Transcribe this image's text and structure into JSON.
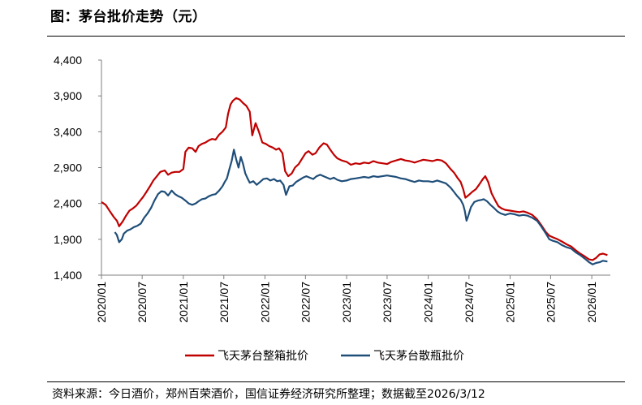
{
  "page": {
    "title": "图：茅台批价走势（元）",
    "source": "资料来源：今日酒价，郑州百荣酒价，国信证券经济研究所整理；数据截至2026/3/12"
  },
  "colors": {
    "box": "#c00000",
    "loose": "#1f4e79",
    "axis": "#7f7f7f"
  },
  "chart_data": {
    "type": "line",
    "title": "图：茅台批价走势（元）",
    "xlabel": "",
    "ylabel": "",
    "ylim": [
      1400,
      4400
    ],
    "y_ticks": [
      1400,
      1900,
      2400,
      2900,
      3400,
      3900,
      4400
    ],
    "y_tick_labels": [
      "1,400",
      "1,900",
      "2,400",
      "2,900",
      "3,400",
      "3,900",
      "4,400"
    ],
    "x_range": [
      "2020/01",
      "2026/03"
    ],
    "x_ticks": [
      "2020/01",
      "2020/07",
      "2021/01",
      "2021/07",
      "2022/01",
      "2022/07",
      "2023/01",
      "2023/07",
      "2024/01",
      "2024/07",
      "2025/01",
      "2025/07",
      "2026/01"
    ],
    "grid": false,
    "legend_position": "bottom",
    "series": [
      {
        "name": "飞天茅台整箱批价",
        "color": "#c00000",
        "points": [
          [
            "2020-01-01",
            2420
          ],
          [
            "2020-01-20",
            2380
          ],
          [
            "2020-02-10",
            2280
          ],
          [
            "2020-02-25",
            2210
          ],
          [
            "2020-03-10",
            2160
          ],
          [
            "2020-03-20",
            2080
          ],
          [
            "2020-04-05",
            2150
          ],
          [
            "2020-04-20",
            2230
          ],
          [
            "2020-05-05",
            2300
          ],
          [
            "2020-05-20",
            2330
          ],
          [
            "2020-06-05",
            2370
          ],
          [
            "2020-06-20",
            2430
          ],
          [
            "2020-07-05",
            2490
          ],
          [
            "2020-07-20",
            2560
          ],
          [
            "2020-08-05",
            2640
          ],
          [
            "2020-08-20",
            2720
          ],
          [
            "2020-09-05",
            2780
          ],
          [
            "2020-09-20",
            2840
          ],
          [
            "2020-10-10",
            2860
          ],
          [
            "2020-10-25",
            2800
          ],
          [
            "2020-11-10",
            2830
          ],
          [
            "2020-11-25",
            2840
          ],
          [
            "2020-12-15",
            2840
          ],
          [
            "2021-01-01",
            2880
          ],
          [
            "2021-01-10",
            3120
          ],
          [
            "2021-01-25",
            3180
          ],
          [
            "2021-02-10",
            3170
          ],
          [
            "2021-02-25",
            3120
          ],
          [
            "2021-03-10",
            3200
          ],
          [
            "2021-03-25",
            3230
          ],
          [
            "2021-04-10",
            3250
          ],
          [
            "2021-04-25",
            3280
          ],
          [
            "2021-05-10",
            3300
          ],
          [
            "2021-05-25",
            3290
          ],
          [
            "2021-06-10",
            3360
          ],
          [
            "2021-06-25",
            3400
          ],
          [
            "2021-07-10",
            3460
          ],
          [
            "2021-07-20",
            3650
          ],
          [
            "2021-07-31",
            3780
          ],
          [
            "2021-08-10",
            3830
          ],
          [
            "2021-08-25",
            3870
          ],
          [
            "2021-09-10",
            3850
          ],
          [
            "2021-09-25",
            3800
          ],
          [
            "2021-10-10",
            3760
          ],
          [
            "2021-10-25",
            3680
          ],
          [
            "2021-11-05",
            3350
          ],
          [
            "2021-11-20",
            3520
          ],
          [
            "2021-12-05",
            3400
          ],
          [
            "2021-12-20",
            3250
          ],
          [
            "2022-01-05",
            3230
          ],
          [
            "2022-01-20",
            3200
          ],
          [
            "2022-02-05",
            3180
          ],
          [
            "2022-02-20",
            3150
          ],
          [
            "2022-03-05",
            3170
          ],
          [
            "2022-03-20",
            3100
          ],
          [
            "2022-04-01",
            2850
          ],
          [
            "2022-04-15",
            2780
          ],
          [
            "2022-05-01",
            2820
          ],
          [
            "2022-05-15",
            2900
          ],
          [
            "2022-06-01",
            2950
          ],
          [
            "2022-06-15",
            3020
          ],
          [
            "2022-07-01",
            3100
          ],
          [
            "2022-07-15",
            3130
          ],
          [
            "2022-08-01",
            3080
          ],
          [
            "2022-08-15",
            3100
          ],
          [
            "2022-09-01",
            3180
          ],
          [
            "2022-09-20",
            3240
          ],
          [
            "2022-10-05",
            3220
          ],
          [
            "2022-10-20",
            3150
          ],
          [
            "2022-11-05",
            3080
          ],
          [
            "2022-11-20",
            3030
          ],
          [
            "2022-12-10",
            3000
          ],
          [
            "2023-01-01",
            2980
          ],
          [
            "2023-01-20",
            2940
          ],
          [
            "2023-02-10",
            2960
          ],
          [
            "2023-03-01",
            2950
          ],
          [
            "2023-03-20",
            2970
          ],
          [
            "2023-04-10",
            2960
          ],
          [
            "2023-05-01",
            2990
          ],
          [
            "2023-05-20",
            2970
          ],
          [
            "2023-06-10",
            2960
          ],
          [
            "2023-07-01",
            2950
          ],
          [
            "2023-07-20",
            2980
          ],
          [
            "2023-08-10",
            3000
          ],
          [
            "2023-09-01",
            3020
          ],
          [
            "2023-09-20",
            3000
          ],
          [
            "2023-10-10",
            2990
          ],
          [
            "2023-11-01",
            2970
          ],
          [
            "2023-11-20",
            2990
          ],
          [
            "2023-12-10",
            3010
          ],
          [
            "2024-01-01",
            3000
          ],
          [
            "2024-01-20",
            2990
          ],
          [
            "2024-02-10",
            3010
          ],
          [
            "2024-03-01",
            3000
          ],
          [
            "2024-03-20",
            2960
          ],
          [
            "2024-04-10",
            2880
          ],
          [
            "2024-04-25",
            2830
          ],
          [
            "2024-05-10",
            2760
          ],
          [
            "2024-05-25",
            2700
          ],
          [
            "2024-06-05",
            2600
          ],
          [
            "2024-06-15",
            2480
          ],
          [
            "2024-07-01",
            2520
          ],
          [
            "2024-07-15",
            2560
          ],
          [
            "2024-08-01",
            2600
          ],
          [
            "2024-08-15",
            2660
          ],
          [
            "2024-09-01",
            2740
          ],
          [
            "2024-09-12",
            2780
          ],
          [
            "2024-09-25",
            2700
          ],
          [
            "2024-10-10",
            2540
          ],
          [
            "2024-10-25",
            2450
          ],
          [
            "2024-11-10",
            2360
          ],
          [
            "2024-11-25",
            2330
          ],
          [
            "2024-12-10",
            2310
          ],
          [
            "2025-01-01",
            2300
          ],
          [
            "2025-01-20",
            2290
          ],
          [
            "2025-02-10",
            2280
          ],
          [
            "2025-03-01",
            2290
          ],
          [
            "2025-03-20",
            2270
          ],
          [
            "2025-04-10",
            2240
          ],
          [
            "2025-05-01",
            2180
          ],
          [
            "2025-05-20",
            2100
          ],
          [
            "2025-06-10",
            2000
          ],
          [
            "2025-06-25",
            1950
          ],
          [
            "2025-07-10",
            1930
          ],
          [
            "2025-08-01",
            1900
          ],
          [
            "2025-08-20",
            1870
          ],
          [
            "2025-09-10",
            1830
          ],
          [
            "2025-10-01",
            1800
          ],
          [
            "2025-10-20",
            1750
          ],
          [
            "2025-11-10",
            1700
          ],
          [
            "2025-12-01",
            1660
          ],
          [
            "2025-12-20",
            1620
          ],
          [
            "2026-01-05",
            1610
          ],
          [
            "2026-01-20",
            1640
          ],
          [
            "2026-02-05",
            1690
          ],
          [
            "2026-02-20",
            1700
          ],
          [
            "2026-03-12",
            1680
          ]
        ]
      },
      {
        "name": "飞天茅台散瓶批价",
        "color": "#1f4e79",
        "points": [
          [
            "2020-03-01",
            2000
          ],
          [
            "2020-03-10",
            1960
          ],
          [
            "2020-03-20",
            1860
          ],
          [
            "2020-04-01",
            1900
          ],
          [
            "2020-04-10",
            1980
          ],
          [
            "2020-04-25",
            2020
          ],
          [
            "2020-05-10",
            2040
          ],
          [
            "2020-05-25",
            2070
          ],
          [
            "2020-06-10",
            2090
          ],
          [
            "2020-06-25",
            2120
          ],
          [
            "2020-07-10",
            2200
          ],
          [
            "2020-07-25",
            2260
          ],
          [
            "2020-08-10",
            2340
          ],
          [
            "2020-08-25",
            2440
          ],
          [
            "2020-09-10",
            2530
          ],
          [
            "2020-09-25",
            2570
          ],
          [
            "2020-10-10",
            2560
          ],
          [
            "2020-10-25",
            2510
          ],
          [
            "2020-11-10",
            2580
          ],
          [
            "2020-11-25",
            2530
          ],
          [
            "2020-12-10",
            2500
          ],
          [
            "2020-12-25",
            2480
          ],
          [
            "2021-01-10",
            2440
          ],
          [
            "2021-01-25",
            2400
          ],
          [
            "2021-02-10",
            2380
          ],
          [
            "2021-02-25",
            2400
          ],
          [
            "2021-03-10",
            2430
          ],
          [
            "2021-03-25",
            2460
          ],
          [
            "2021-04-10",
            2470
          ],
          [
            "2021-04-25",
            2500
          ],
          [
            "2021-05-10",
            2520
          ],
          [
            "2021-05-25",
            2530
          ],
          [
            "2021-06-10",
            2580
          ],
          [
            "2021-06-25",
            2640
          ],
          [
            "2021-07-05",
            2700
          ],
          [
            "2021-07-15",
            2750
          ],
          [
            "2021-07-25",
            2870
          ],
          [
            "2021-08-05",
            2990
          ],
          [
            "2021-08-15",
            3150
          ],
          [
            "2021-08-25",
            3020
          ],
          [
            "2021-09-05",
            2900
          ],
          [
            "2021-09-15",
            3050
          ],
          [
            "2021-09-25",
            2950
          ],
          [
            "2021-10-05",
            2820
          ],
          [
            "2021-10-15",
            2750
          ],
          [
            "2021-10-25",
            2690
          ],
          [
            "2021-11-10",
            2710
          ],
          [
            "2021-11-25",
            2660
          ],
          [
            "2021-12-10",
            2700
          ],
          [
            "2021-12-25",
            2740
          ],
          [
            "2022-01-10",
            2750
          ],
          [
            "2022-01-25",
            2720
          ],
          [
            "2022-02-10",
            2740
          ],
          [
            "2022-02-25",
            2710
          ],
          [
            "2022-03-10",
            2720
          ],
          [
            "2022-03-25",
            2660
          ],
          [
            "2022-04-05",
            2520
          ],
          [
            "2022-04-20",
            2640
          ],
          [
            "2022-05-05",
            2650
          ],
          [
            "2022-05-20",
            2700
          ],
          [
            "2022-06-05",
            2730
          ],
          [
            "2022-06-20",
            2760
          ],
          [
            "2022-07-05",
            2780
          ],
          [
            "2022-07-20",
            2760
          ],
          [
            "2022-08-05",
            2740
          ],
          [
            "2022-08-20",
            2780
          ],
          [
            "2022-09-05",
            2800
          ],
          [
            "2022-09-20",
            2780
          ],
          [
            "2022-10-05",
            2760
          ],
          [
            "2022-10-20",
            2740
          ],
          [
            "2022-11-05",
            2760
          ],
          [
            "2022-11-20",
            2730
          ],
          [
            "2022-12-10",
            2710
          ],
          [
            "2023-01-01",
            2720
          ],
          [
            "2023-01-20",
            2740
          ],
          [
            "2023-02-10",
            2750
          ],
          [
            "2023-03-01",
            2760
          ],
          [
            "2023-03-20",
            2770
          ],
          [
            "2023-04-10",
            2760
          ],
          [
            "2023-05-01",
            2780
          ],
          [
            "2023-05-20",
            2770
          ],
          [
            "2023-06-10",
            2780
          ],
          [
            "2023-07-01",
            2790
          ],
          [
            "2023-07-20",
            2780
          ],
          [
            "2023-08-10",
            2770
          ],
          [
            "2023-09-01",
            2750
          ],
          [
            "2023-09-20",
            2740
          ],
          [
            "2023-10-10",
            2720
          ],
          [
            "2023-11-01",
            2700
          ],
          [
            "2023-11-20",
            2720
          ],
          [
            "2023-12-10",
            2710
          ],
          [
            "2024-01-01",
            2710
          ],
          [
            "2024-01-20",
            2700
          ],
          [
            "2024-02-10",
            2720
          ],
          [
            "2024-03-01",
            2700
          ],
          [
            "2024-03-20",
            2680
          ],
          [
            "2024-04-10",
            2620
          ],
          [
            "2024-04-25",
            2560
          ],
          [
            "2024-05-10",
            2500
          ],
          [
            "2024-05-25",
            2450
          ],
          [
            "2024-06-05",
            2380
          ],
          [
            "2024-06-12",
            2300
          ],
          [
            "2024-06-20",
            2160
          ],
          [
            "2024-06-28",
            2230
          ],
          [
            "2024-07-10",
            2350
          ],
          [
            "2024-07-25",
            2420
          ],
          [
            "2024-08-10",
            2440
          ],
          [
            "2024-08-25",
            2450
          ],
          [
            "2024-09-05",
            2460
          ],
          [
            "2024-09-20",
            2430
          ],
          [
            "2024-10-05",
            2380
          ],
          [
            "2024-10-20",
            2340
          ],
          [
            "2024-11-05",
            2290
          ],
          [
            "2024-11-20",
            2260
          ],
          [
            "2024-12-10",
            2240
          ],
          [
            "2025-01-01",
            2260
          ],
          [
            "2025-01-20",
            2250
          ],
          [
            "2025-02-10",
            2230
          ],
          [
            "2025-03-01",
            2240
          ],
          [
            "2025-03-20",
            2230
          ],
          [
            "2025-04-10",
            2200
          ],
          [
            "2025-05-01",
            2160
          ],
          [
            "2025-05-20",
            2080
          ],
          [
            "2025-06-10",
            1980
          ],
          [
            "2025-06-25",
            1900
          ],
          [
            "2025-07-10",
            1880
          ],
          [
            "2025-08-01",
            1860
          ],
          [
            "2025-08-20",
            1820
          ],
          [
            "2025-09-10",
            1790
          ],
          [
            "2025-10-01",
            1770
          ],
          [
            "2025-10-20",
            1720
          ],
          [
            "2025-11-10",
            1680
          ],
          [
            "2025-12-01",
            1630
          ],
          [
            "2025-12-20",
            1580
          ],
          [
            "2026-01-05",
            1550
          ],
          [
            "2026-01-20",
            1570
          ],
          [
            "2026-02-05",
            1580
          ],
          [
            "2026-02-20",
            1600
          ],
          [
            "2026-03-12",
            1590
          ]
        ]
      }
    ]
  }
}
